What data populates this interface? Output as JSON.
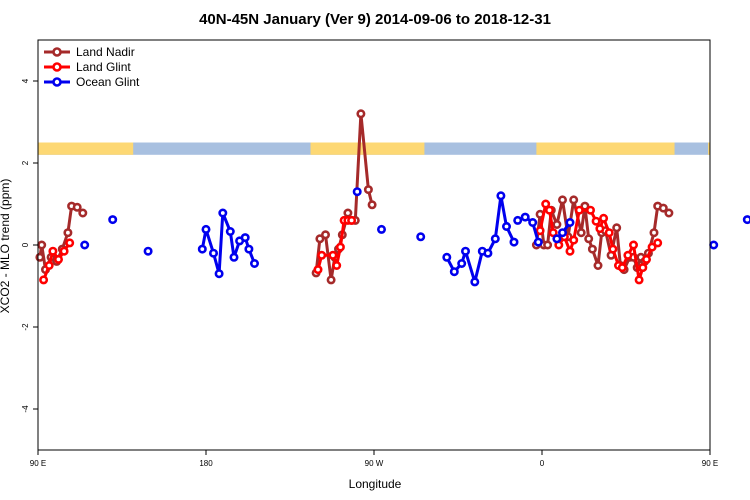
{
  "chart_data": {
    "type": "line",
    "title": "40N-45N January (Ver 9)   2014-09-06 to 2018-12-31",
    "xlabel": "Longitude",
    "ylabel": "XCO2 - MLO trend (ppm)",
    "x_axis": {
      "range": [
        90,
        450
      ],
      "ticks": [
        {
          "value": 90,
          "label": "90 E"
        },
        {
          "value": 180,
          "label": "180"
        },
        {
          "value": 270,
          "label": "90 W"
        },
        {
          "value": 360,
          "label": "0"
        },
        {
          "value": 450,
          "label": "90 E"
        },
        {
          "value": 540,
          "label": "180"
        }
      ]
    },
    "y_axis": {
      "range": [
        -5,
        5
      ],
      "ticks": [
        {
          "value": -4,
          "label": "-4"
        },
        {
          "value": -2,
          "label": "-2"
        },
        {
          "value": 0,
          "label": "0"
        },
        {
          "value": 2,
          "label": "2"
        },
        {
          "value": 4,
          "label": "4"
        }
      ]
    },
    "legend_position": "top-left",
    "land_mask": {
      "y_range": [
        2.2,
        2.5
      ],
      "land_color": "#FDD874",
      "ocean_color": "#A8C0E0",
      "land_segments": [
        [
          90,
          141
        ],
        [
          236,
          297
        ],
        [
          357,
          431
        ],
        [
          449,
          533
        ]
      ]
    },
    "series": [
      {
        "name": "Land Nadir",
        "color": "#A52A2A",
        "segments": [
          [
            [
              91,
              -0.3
            ],
            [
              92,
              0.0
            ],
            [
              94,
              -0.6
            ],
            [
              97,
              -0.3
            ],
            [
              100,
              -0.4
            ],
            [
              103,
              -0.1
            ],
            [
              106,
              0.3
            ],
            [
              108,
              0.95
            ],
            [
              111,
              0.92
            ],
            [
              114,
              0.78
            ]
          ],
          [
            [
              239,
              -0.68
            ],
            [
              241,
              0.15
            ],
            [
              244,
              0.25
            ],
            [
              247,
              -0.85
            ],
            [
              249,
              -0.3
            ],
            [
              251,
              -0.1
            ],
            [
              253,
              0.25
            ],
            [
              256,
              0.78
            ],
            [
              258,
              0.6
            ],
            [
              260,
              0.6
            ],
            [
              263,
              3.2
            ],
            [
              267,
              1.35
            ],
            [
              269,
              0.98
            ]
          ],
          [
            [
              357,
              0.0
            ],
            [
              359,
              0.75
            ],
            [
              361,
              0.0
            ],
            [
              363,
              0.0
            ],
            [
              365,
              0.85
            ],
            [
              368,
              0.5
            ],
            [
              371,
              1.1
            ],
            [
              374,
              0.2
            ],
            [
              377,
              1.1
            ],
            [
              381,
              0.3
            ],
            [
              383,
              0.95
            ],
            [
              385,
              0.15
            ],
            [
              387,
              -0.1
            ],
            [
              390,
              -0.5
            ],
            [
              392,
              0.3
            ],
            [
              394,
              0.35
            ],
            [
              397,
              -0.25
            ],
            [
              400,
              0.42
            ],
            [
              402,
              -0.5
            ],
            [
              404,
              -0.6
            ],
            [
              407,
              -0.3
            ],
            [
              409,
              -0.3
            ],
            [
              411,
              -0.55
            ],
            [
              413,
              -0.3
            ],
            [
              415,
              -0.4
            ],
            [
              417,
              -0.2
            ],
            [
              420,
              0.3
            ],
            [
              422,
              0.95
            ],
            [
              425,
              0.9
            ],
            [
              428,
              0.78
            ]
          ]
        ]
      },
      {
        "name": "Land Glint",
        "color": "#FF0000",
        "segments": [
          [
            [
              93,
              -0.85
            ],
            [
              96,
              -0.5
            ],
            [
              98,
              -0.15
            ],
            [
              101,
              -0.35
            ],
            [
              104,
              -0.15
            ],
            [
              107,
              0.05
            ]
          ],
          [
            [
              240,
              -0.6
            ],
            [
              242,
              -0.25
            ],
            [
              248,
              -0.25
            ],
            [
              250,
              -0.5
            ],
            [
              252,
              -0.05
            ],
            [
              254,
              0.6
            ],
            [
              256,
              0.6
            ],
            [
              258,
              0.6
            ]
          ],
          [
            [
              359,
              0.35
            ],
            [
              362,
              1.0
            ],
            [
              364,
              0.85
            ],
            [
              366,
              0.3
            ],
            [
              369,
              0.0
            ],
            [
              372,
              0.2
            ],
            [
              375,
              -0.15
            ],
            [
              377,
              0.12
            ],
            [
              380,
              0.85
            ],
            [
              386,
              0.85
            ],
            [
              389,
              0.58
            ],
            [
              391,
              0.4
            ],
            [
              393,
              0.65
            ],
            [
              396,
              0.3
            ],
            [
              398,
              -0.1
            ],
            [
              401,
              -0.5
            ],
            [
              403,
              -0.55
            ],
            [
              406,
              -0.25
            ],
            [
              409,
              0.0
            ],
            [
              412,
              -0.85
            ],
            [
              414,
              -0.55
            ],
            [
              416,
              -0.35
            ],
            [
              419,
              -0.05
            ],
            [
              422,
              0.05
            ]
          ]
        ]
      },
      {
        "name": "Ocean Glint",
        "color": "#0000EE",
        "segments": [
          [
            [
              115,
              0.0
            ]
          ],
          [
            [
              130,
              0.62
            ]
          ],
          [
            [
              149,
              -0.15
            ]
          ],
          [
            [
              178,
              -0.1
            ],
            [
              180,
              0.38
            ],
            [
              184,
              -0.2
            ],
            [
              187,
              -0.7
            ],
            [
              189,
              0.78
            ],
            [
              193,
              0.33
            ],
            [
              195,
              -0.3
            ],
            [
              198,
              0.1
            ],
            [
              201,
              0.18
            ],
            [
              203,
              -0.1
            ],
            [
              206,
              -0.45
            ]
          ],
          [
            [
              261,
              1.3
            ]
          ],
          [
            [
              274,
              0.38
            ]
          ],
          [
            [
              295,
              0.2
            ]
          ],
          [
            [
              309,
              -0.3
            ],
            [
              313,
              -0.65
            ],
            [
              317,
              -0.45
            ],
            [
              319,
              -0.15
            ],
            [
              324,
              -0.9
            ],
            [
              328,
              -0.15
            ],
            [
              331,
              -0.2
            ],
            [
              335,
              0.15
            ],
            [
              338,
              1.2
            ],
            [
              341,
              0.45
            ],
            [
              345,
              0.07
            ]
          ],
          [
            [
              347,
              0.6
            ],
            [
              351,
              0.68
            ],
            [
              355,
              0.55
            ],
            [
              358,
              0.07
            ]
          ],
          [
            [
              368,
              0.15
            ],
            [
              371,
              0.3
            ],
            [
              375,
              0.55
            ]
          ],
          [
            [
              452,
              0.0
            ]
          ],
          [
            [
              470,
              0.62
            ]
          ],
          [
            [
              489,
              -0.15
            ]
          ]
        ]
      }
    ]
  }
}
